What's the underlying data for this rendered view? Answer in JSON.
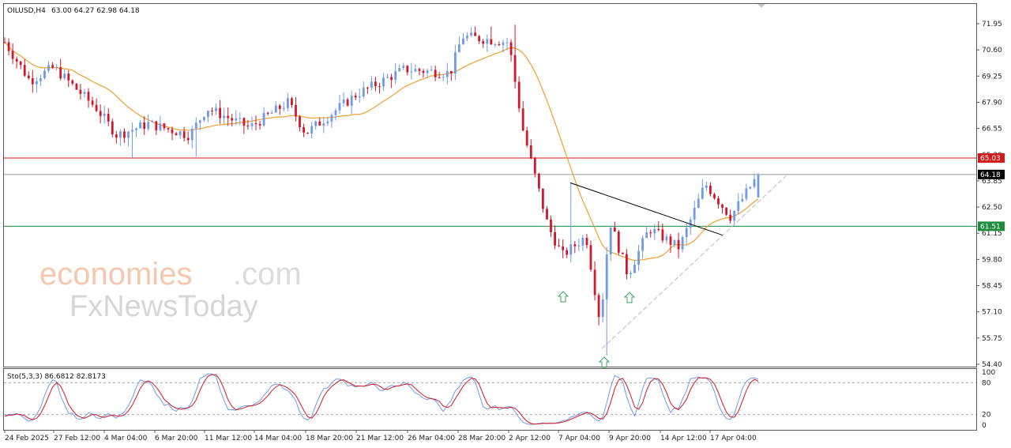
{
  "header": {
    "symbol": "OILUSD,H4",
    "ohlc": "63.00 64.27 62.98 64.18",
    "stoch_label": "Sto(5,3,3) 86.6812 82.8173"
  },
  "watermark": {
    "brand_main": "economies",
    "brand_suffix": ".com",
    "brand_second": "FxNewsToday"
  },
  "colors": {
    "bull": "#6f9be8",
    "bear": "#d1182b",
    "ma": "#f0a030",
    "resistance": "#d11a1a",
    "support": "#1e8c3c",
    "current": "#9a9a9a",
    "arrow": "#3aa56a",
    "stoch_main": "#6f9be8",
    "stoch_signal": "#d1182b"
  },
  "price_axis": {
    "ticks": [
      "71.95",
      "70.60",
      "69.25",
      "67.90",
      "66.55",
      "65.20",
      "63.85",
      "62.50",
      "61.15",
      "59.80",
      "58.45",
      "57.10",
      "55.75",
      "54.40"
    ]
  },
  "stoch_axis": {
    "ticks": [
      "100",
      "80",
      "20",
      "0"
    ]
  },
  "time_axis": {
    "ticks": [
      "24 Feb 2025",
      "27 Feb 12:00",
      "4 Mar 04:00",
      "6 Mar 20:00",
      "11 Mar 12:00",
      "14 Mar 04:00",
      "18 Mar 20:00",
      "21 Mar 12:00",
      "26 Mar 04:00",
      "28 Mar 20:00",
      "2 Apr 12:00",
      "7 Apr 04:00",
      "9 Apr 20:00",
      "14 Apr 12:00",
      "17 Apr 04:00"
    ]
  },
  "levels": {
    "resistance": {
      "value": 65.03,
      "label": "65.03"
    },
    "support": {
      "value": 61.51,
      "label": "61.51"
    },
    "current": {
      "value": 64.18,
      "label": "64.18"
    }
  },
  "chart_data": {
    "type": "candlestick",
    "symbol": "OILUSD",
    "timeframe": "H4",
    "ylim": [
      54.4,
      72.2
    ],
    "ma_type": "moving average",
    "anchors": [
      {
        "t": "24 Feb",
        "price": 71.0
      },
      {
        "t": "26 Feb",
        "price": 69.0
      },
      {
        "t": "27 Feb",
        "price": 69.7
      },
      {
        "t": "4 Mar",
        "price": 67.6
      },
      {
        "t": "5 Mar",
        "price": 66.2
      },
      {
        "t": "6 Mar",
        "price": 66.8
      },
      {
        "t": "10 Mar",
        "price": 66.2
      },
      {
        "t": "11 Mar",
        "price": 67.6
      },
      {
        "t": "14 Mar",
        "price": 66.6
      },
      {
        "t": "17 Mar",
        "price": 67.9
      },
      {
        "t": "18 Mar",
        "price": 66.3
      },
      {
        "t": "21 Mar",
        "price": 68.3
      },
      {
        "t": "25 Mar",
        "price": 69.6
      },
      {
        "t": "27 Mar",
        "price": 69.4
      },
      {
        "t": "28 Mar",
        "price": 71.3
      },
      {
        "t": "2 Apr",
        "price": 71.0
      },
      {
        "t": "3 Apr",
        "price": 66.5
      },
      {
        "t": "4 Apr",
        "price": 61.5
      },
      {
        "t": "7 Apr",
        "price": 60.0
      },
      {
        "t": "8 Apr",
        "price": 61.0
      },
      {
        "t": "9 Apr",
        "price": 56.5
      },
      {
        "t": "9 Apr 16:00",
        "price": 61.8
      },
      {
        "t": "10 Apr",
        "price": 59.0
      },
      {
        "t": "11 Apr",
        "price": 61.4
      },
      {
        "t": "15 Apr",
        "price": 60.4
      },
      {
        "t": "16 Apr",
        "price": 63.7
      },
      {
        "t": "17 Apr",
        "price": 62.0
      },
      {
        "t": "18 Apr",
        "price": 64.18
      }
    ],
    "last_bar": {
      "open": 63.0,
      "high": 64.27,
      "low": 62.98,
      "close": 64.18
    },
    "horizontal_levels": [
      65.03,
      64.18,
      61.51
    ],
    "stochastic": {
      "params": "5,3,3",
      "main": 86.6812,
      "signal": 82.8173,
      "levels": [
        80,
        20
      ]
    },
    "annotations": [
      "swing-low arrows at 7 Apr, 9 Apr, 10 Apr",
      "descending trendline from 7 Apr high",
      "ascending trendline from 9 Apr low"
    ]
  }
}
